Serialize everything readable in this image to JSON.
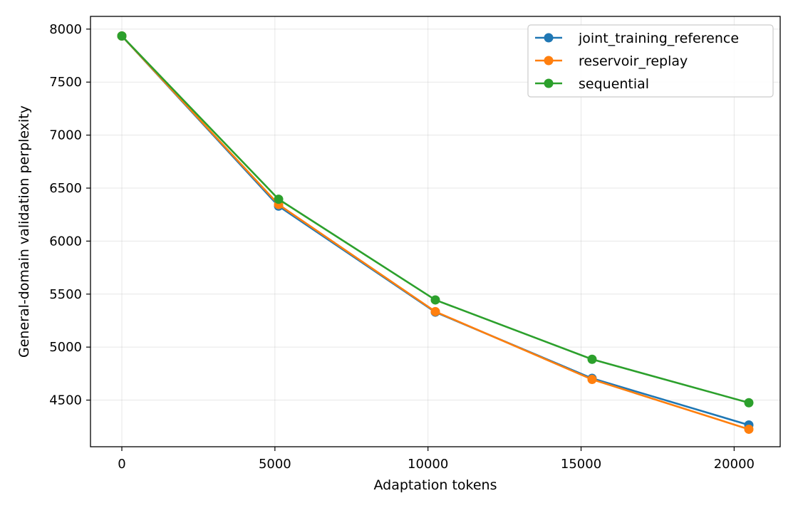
{
  "chart_data": {
    "type": "line",
    "xlabel": "Adaptation tokens",
    "ylabel": "General-domain validation perplexity",
    "x": [
      0,
      5120,
      10240,
      15360,
      20480
    ],
    "xlim": [
      -1024,
      21504
    ],
    "ylim": [
      4060,
      8120
    ],
    "xticks": [
      0,
      5000,
      10000,
      15000,
      20000
    ],
    "yticks": [
      4500,
      5000,
      5500,
      6000,
      6500,
      7000,
      7500,
      8000
    ],
    "grid": true,
    "legend_position": "top-right",
    "series": [
      {
        "name": "joint_training_reference",
        "color": "#1f77b4",
        "values": [
          7935,
          6330,
          5330,
          4705,
          4265
        ]
      },
      {
        "name": "reservoir_replay",
        "color": "#ff7f0e",
        "values": [
          7935,
          6345,
          5335,
          4695,
          4225
        ]
      },
      {
        "name": "sequential",
        "color": "#2ca02c",
        "values": [
          7935,
          6395,
          5445,
          4885,
          4475
        ]
      }
    ]
  }
}
